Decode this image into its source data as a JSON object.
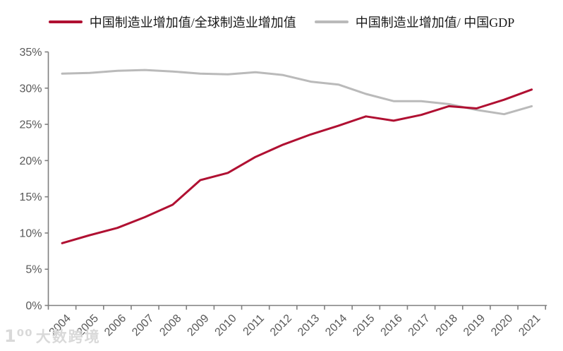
{
  "colors": {
    "background": "#ffffff",
    "series_red": "#b01032",
    "series_gray": "#bababa",
    "axis_line": "#7f7f7f",
    "tick_label": "#595959",
    "legend_text": "#1a1a1a",
    "watermark": "#d8d8d8"
  },
  "watermark": {
    "logo": "1⁰⁰",
    "text": "大数跨境"
  },
  "chart_data": {
    "type": "line",
    "title": "",
    "xlabel": "",
    "ylabel": "",
    "x": [
      "2004",
      "2005",
      "2006",
      "2007",
      "2008",
      "2009",
      "2010",
      "2011",
      "2012",
      "2013",
      "2014",
      "2015",
      "2016",
      "2017",
      "2018",
      "2019",
      "2020",
      "2021"
    ],
    "series": [
      {
        "name": "中国制造业增加值/全球制造业增加值",
        "color": "#b01032",
        "values": [
          8.6,
          9.7,
          10.7,
          12.2,
          13.9,
          17.3,
          18.3,
          20.5,
          22.2,
          23.6,
          24.8,
          26.1,
          25.5,
          26.3,
          27.5,
          27.2,
          28.4,
          29.8
        ]
      },
      {
        "name": "中国制造业增加值/ 中国GDP",
        "color": "#bababa",
        "values": [
          32.0,
          32.1,
          32.4,
          32.5,
          32.3,
          32.0,
          31.9,
          32.2,
          31.8,
          30.9,
          30.5,
          29.2,
          28.2,
          28.2,
          27.8,
          27.0,
          26.4,
          27.5
        ]
      }
    ],
    "ylim": [
      0,
      35
    ],
    "ytick_step": 5,
    "ytick_labels": [
      "0%",
      "5%",
      "10%",
      "15%",
      "20%",
      "25%",
      "30%",
      "35%"
    ],
    "grid": false,
    "legend_position": "top",
    "x_tick_rotation": -45
  }
}
